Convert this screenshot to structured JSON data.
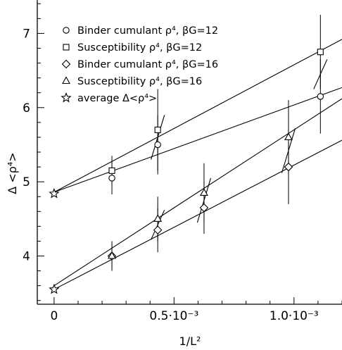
{
  "chart_data": {
    "type": "scatter",
    "xlabel": "1/L²",
    "ylabel": "Δ <ρ⁴>",
    "xlim": [
      -7e-05,
      0.0012
    ],
    "ylim": [
      3.35,
      7.45
    ],
    "x_ticks": [
      {
        "value": 0,
        "label": "0"
      },
      {
        "value": 0.0005,
        "label": "0.5·10⁻³"
      },
      {
        "value": 0.001,
        "label": "1.0·10⁻³"
      }
    ],
    "y_ticks": [
      {
        "value": 4,
        "label": "4"
      },
      {
        "value": 5,
        "label": "5"
      },
      {
        "value": 6,
        "label": "6"
      },
      {
        "value": 7,
        "label": "7"
      }
    ],
    "legend_position": "top-left",
    "series": [
      {
        "name": "Binder cumulant ρ⁴, βG=12",
        "marker": "circle",
        "points": [
          {
            "x": 0.000241,
            "y": 5.05,
            "err": 0.22
          },
          {
            "x": 0.000432,
            "y": 5.5,
            "err": 0.4
          },
          {
            "x": 0.00111,
            "y": 6.15,
            "err": 0.5
          }
        ]
      },
      {
        "name": "Susceptibility ρ⁴, βG=12",
        "marker": "square",
        "points": [
          {
            "x": 0.000241,
            "y": 5.15,
            "err": 0.2
          },
          {
            "x": 0.000432,
            "y": 5.7,
            "err": 0.55
          },
          {
            "x": 0.00111,
            "y": 6.75,
            "err": 0.5
          }
        ]
      },
      {
        "name": "Binder cumulant ρ⁴, βG=16",
        "marker": "diamond",
        "points": [
          {
            "x": 0.000241,
            "y": 4.0,
            "err": 0.15
          },
          {
            "x": 0.000432,
            "y": 4.35,
            "err": 0.3
          },
          {
            "x": 0.000625,
            "y": 4.65,
            "err": 0.35
          },
          {
            "x": 0.000977,
            "y": 5.2,
            "err": 0.5
          }
        ]
      },
      {
        "name": "Susceptibility ρ⁴, βG=16",
        "marker": "triangle",
        "points": [
          {
            "x": 0.000241,
            "y": 4.0,
            "err": 0.2
          },
          {
            "x": 0.000432,
            "y": 4.5,
            "err": 0.3
          },
          {
            "x": 0.000625,
            "y": 4.85,
            "err": 0.4
          },
          {
            "x": 0.000977,
            "y": 5.6,
            "err": 0.5
          }
        ]
      },
      {
        "name": "average Δ<ρ⁴>",
        "marker": "star",
        "points": [
          {
            "x": 0,
            "y": 4.84
          },
          {
            "x": 0,
            "y": 3.55
          }
        ]
      }
    ],
    "fit_lines": [
      {
        "x0": 0,
        "y0": 4.86,
        "x1": 0.0012,
        "y1": 6.92
      },
      {
        "x0": 0,
        "y0": 4.86,
        "x1": 0.0012,
        "y1": 6.27
      },
      {
        "x0": 0,
        "y0": 3.6,
        "x1": 0.0012,
        "y1": 6.12
      },
      {
        "x0": 0,
        "y0": 3.55,
        "x1": 0.0012,
        "y1": 5.56
      }
    ],
    "slope_segments": [
      {
        "x": 0.000432,
        "y": 5.6,
        "dx": 2.8e-05,
        "dy": 0.3
      },
      {
        "x": 0.000432,
        "y": 4.42,
        "dx": 2.8e-05,
        "dy": 0.2
      },
      {
        "x": 0.000625,
        "y": 4.75,
        "dx": 2.8e-05,
        "dy": 0.3
      },
      {
        "x": 0.000977,
        "y": 5.42,
        "dx": 2.8e-05,
        "dy": 0.3
      },
      {
        "x": 0.00111,
        "y": 6.45,
        "dx": 2.8e-05,
        "dy": 0.2
      }
    ]
  }
}
